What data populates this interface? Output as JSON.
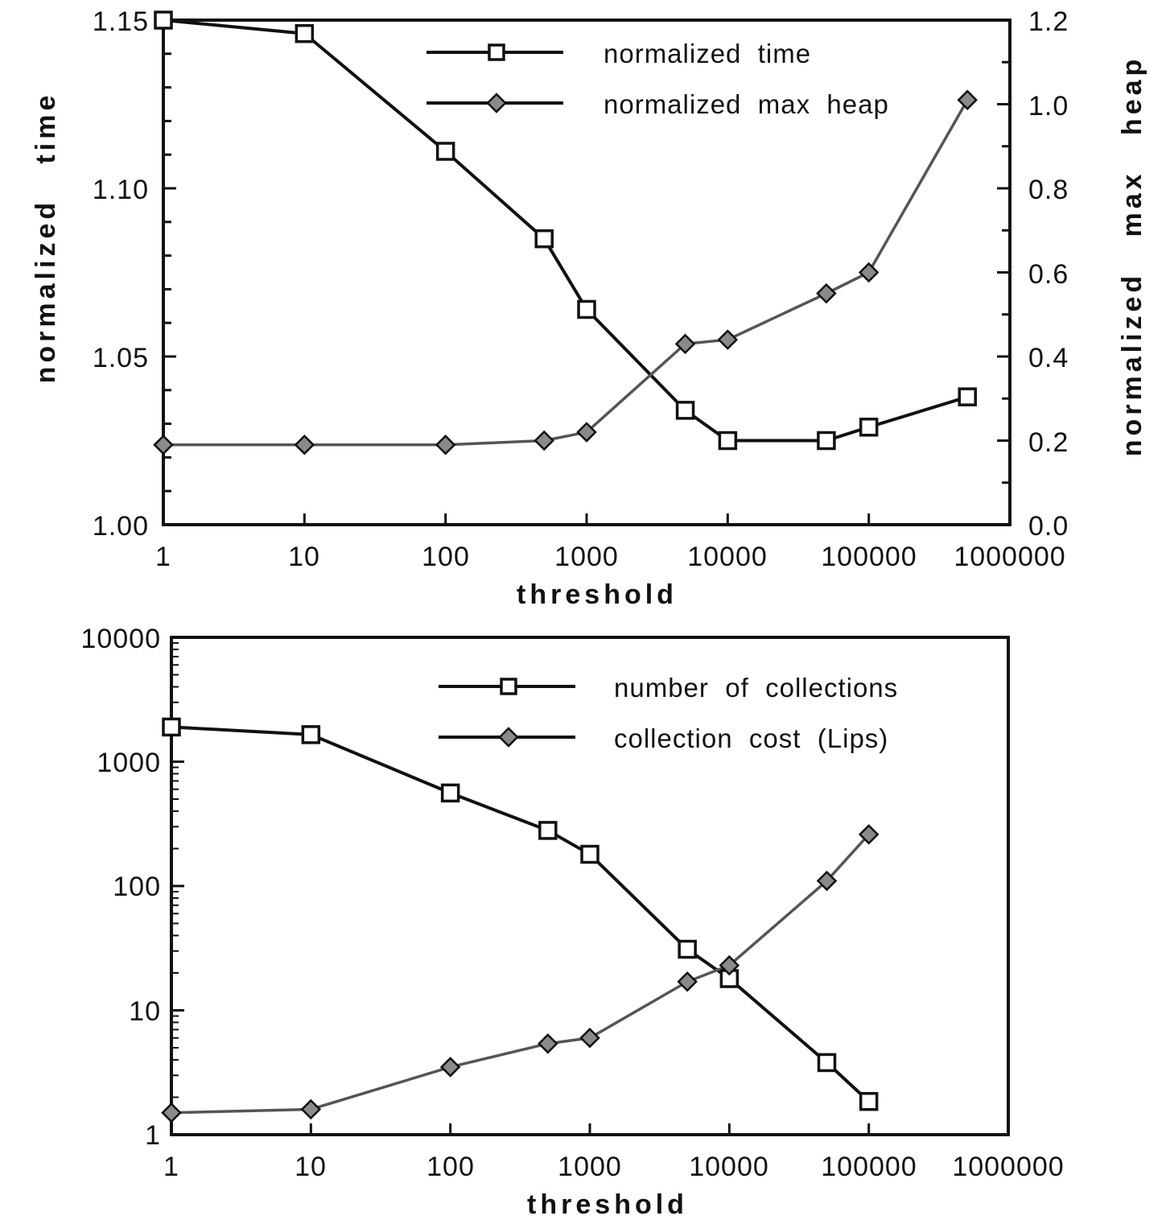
{
  "colors": {
    "ink": "#111111",
    "marker_fill_diamond": "#8a8a8a",
    "background": "#ffffff"
  },
  "chart_data": [
    {
      "type": "line",
      "xlabel": "threshold",
      "x_scale": "log",
      "xlim": [
        1,
        1000000
      ],
      "x_ticks": [
        "1",
        "10",
        "100",
        "1000",
        "10000",
        "100000",
        "1000000"
      ],
      "ylabel_left": "normalized   time",
      "ylim_left": [
        1.0,
        1.15
      ],
      "y_ticks_left": [
        "1.00",
        "1.05",
        "1.10",
        "1.15"
      ],
      "ylabel_right": "normalized   max   heap",
      "ylim_right": [
        0.0,
        1.2
      ],
      "y_ticks_right": [
        "0.0",
        "0.2",
        "0.4",
        "0.6",
        "0.8",
        "1.0",
        "1.2"
      ],
      "legend_position": "top-right",
      "grid": false,
      "series": [
        {
          "name": "normalized  time",
          "axis": "left",
          "marker": "square",
          "x": [
            1,
            10,
            100,
            500,
            1000,
            5000,
            10000,
            50000,
            100000,
            500000
          ],
          "y": [
            1.15,
            1.146,
            1.111,
            1.085,
            1.064,
            1.034,
            1.025,
            1.025,
            1.029,
            1.038
          ]
        },
        {
          "name": "normalized  max  heap",
          "axis": "right",
          "marker": "diamond",
          "x": [
            1,
            10,
            100,
            500,
            1000,
            5000,
            10000,
            50000,
            100000,
            500000
          ],
          "y": [
            0.19,
            0.19,
            0.19,
            0.2,
            0.22,
            0.43,
            0.44,
            0.55,
            0.6,
            1.01
          ]
        }
      ]
    },
    {
      "type": "line",
      "xlabel": "threshold",
      "x_scale": "log",
      "xlim": [
        1,
        1000000
      ],
      "x_ticks": [
        "1",
        "10",
        "100",
        "1000",
        "10000",
        "100000",
        "1000000"
      ],
      "y_scale": "log",
      "ylim": [
        1,
        10000
      ],
      "y_ticks": [
        "1",
        "10",
        "100",
        "1000",
        "10000"
      ],
      "legend_position": "top-right",
      "grid": false,
      "series": [
        {
          "name": "number  of  collections",
          "marker": "square",
          "x": [
            1,
            10,
            100,
            500,
            1000,
            5000,
            10000,
            50000,
            100000
          ],
          "y": [
            1900,
            1650,
            560,
            280,
            180,
            31,
            18,
            3.8,
            1.85
          ]
        },
        {
          "name": "collection  cost  (Lips)",
          "marker": "diamond",
          "x": [
            1,
            10,
            100,
            500,
            1000,
            5000,
            10000,
            50000,
            100000
          ],
          "y": [
            1.5,
            1.6,
            3.5,
            5.4,
            6.0,
            17,
            23,
            110,
            260
          ]
        }
      ]
    }
  ]
}
